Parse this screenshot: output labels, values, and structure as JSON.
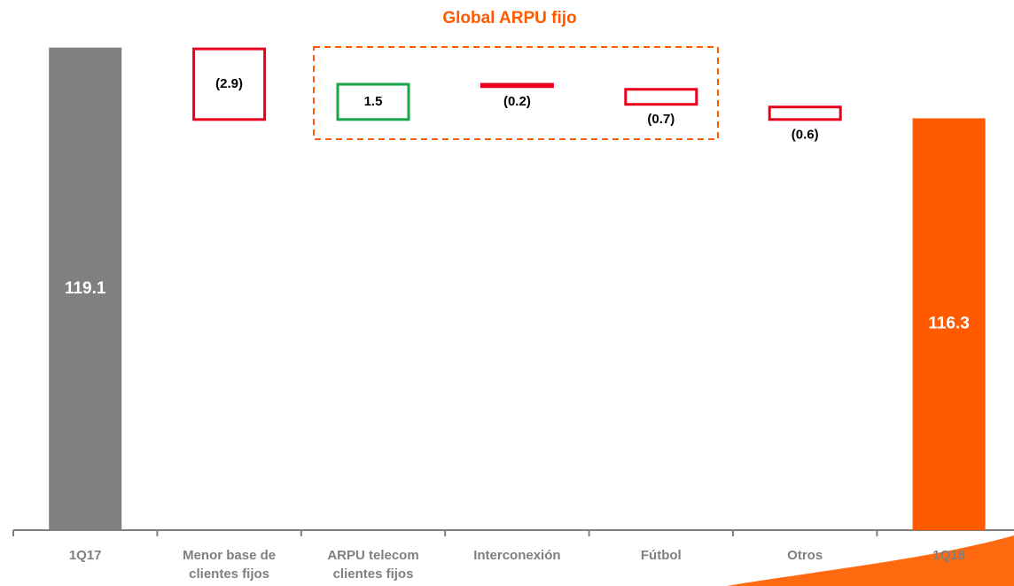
{
  "chart_data": {
    "type": "waterfall",
    "title": "Global ARPU fijo",
    "categories": [
      "1Q17",
      "Menor base de clientes fijos",
      "ARPU telecom clientes fijos",
      "Interconexión",
      "Fútbol",
      "Otros",
      "1Q18"
    ],
    "values": [
      119.1,
      -2.9,
      1.5,
      -0.2,
      -0.7,
      -0.6,
      116.3
    ],
    "value_labels": [
      "119.1",
      "(2.9)",
      "1.5",
      "(0.2)",
      "(0.7)",
      "(0.6)",
      "116.3"
    ],
    "measure": [
      "absolute",
      "relative",
      "relative",
      "relative",
      "relative",
      "relative",
      "total"
    ],
    "colors": {
      "start": "#808080",
      "end": "#ff5a00",
      "increase": "#1aa64a",
      "decrease": "#e8001c"
    },
    "ylim": [
      100,
      120
    ]
  }
}
